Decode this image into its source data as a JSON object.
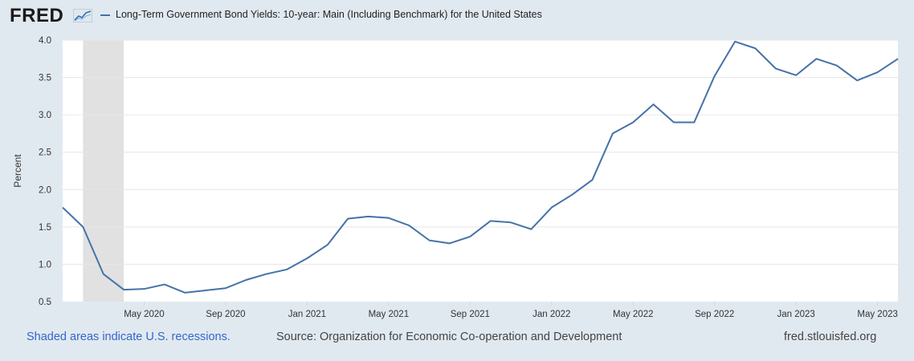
{
  "header": {
    "logo_text": "FRED",
    "legend_label": "Long-Term Government Bond Yields: 10-year: Main (Including Benchmark) for the United States",
    "series_color": "#4572a7"
  },
  "chart_data": {
    "type": "line",
    "title": "Long-Term Government Bond Yields: 10-year: Main (Including Benchmark) for the United States",
    "xlabel": "",
    "ylabel": "Percent",
    "ylim": [
      0.5,
      4.0
    ],
    "yticks": [
      "0.5",
      "1.0",
      "1.5",
      "2.0",
      "2.5",
      "3.0",
      "3.5",
      "4.0"
    ],
    "xticks": [
      "May 2020",
      "Sep 2020",
      "Jan 2021",
      "May 2021",
      "Sep 2021",
      "Jan 2022",
      "May 2022",
      "Sep 2022",
      "Jan 2023",
      "May 2023"
    ],
    "x": [
      "2020-01",
      "2020-02",
      "2020-03",
      "2020-04",
      "2020-05",
      "2020-06",
      "2020-07",
      "2020-08",
      "2020-09",
      "2020-10",
      "2020-11",
      "2020-12",
      "2021-01",
      "2021-02",
      "2021-03",
      "2021-04",
      "2021-05",
      "2021-06",
      "2021-07",
      "2021-08",
      "2021-09",
      "2021-10",
      "2021-11",
      "2021-12",
      "2022-01",
      "2022-02",
      "2022-03",
      "2022-04",
      "2022-05",
      "2022-06",
      "2022-07",
      "2022-08",
      "2022-09",
      "2022-10",
      "2022-11",
      "2022-12",
      "2023-01",
      "2023-02",
      "2023-03",
      "2023-04",
      "2023-05",
      "2023-06"
    ],
    "series": [
      {
        "name": "Long-Term Government Bond Yields: 10-year",
        "color": "#4572a7",
        "values": [
          1.76,
          1.5,
          0.87,
          0.66,
          0.67,
          0.73,
          0.62,
          0.65,
          0.68,
          0.79,
          0.87,
          0.93,
          1.08,
          1.26,
          1.61,
          1.64,
          1.62,
          1.52,
          1.32,
          1.28,
          1.37,
          1.58,
          1.56,
          1.47,
          1.76,
          1.93,
          2.13,
          2.75,
          2.9,
          3.14,
          2.9,
          2.9,
          3.52,
          3.98,
          3.89,
          3.62,
          3.53,
          3.75,
          3.66,
          3.46,
          3.57,
          3.75
        ]
      }
    ],
    "recession_shading": {
      "start": "2020-02",
      "end": "2020-04"
    },
    "grid": true
  },
  "footer": {
    "recession_note": "Shaded areas indicate U.S. recessions.",
    "source": "Source: Organization for Economic Co-operation and Development",
    "site": "fred.stlouisfed.org"
  }
}
